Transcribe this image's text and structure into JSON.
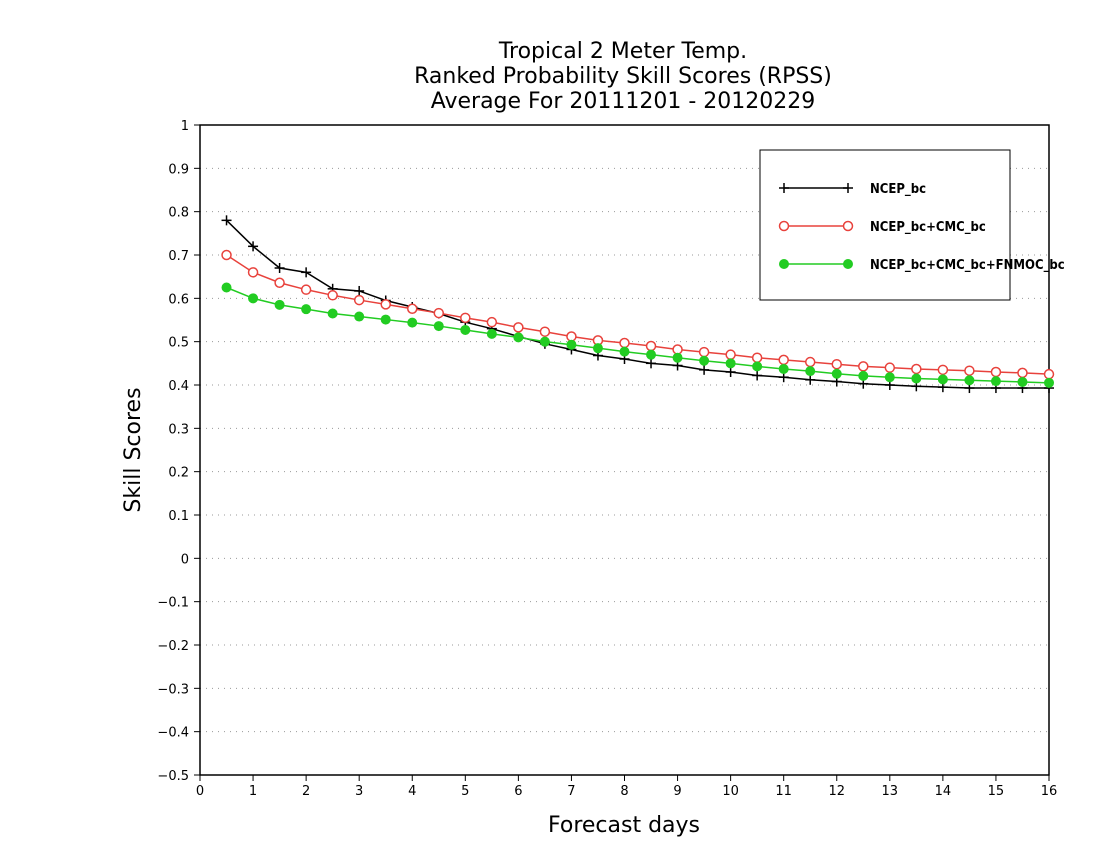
{
  "chart_data": {
    "type": "line",
    "title": [
      "Tropical 2 Meter Temp.",
      "Ranked Probability Skill Scores (RPSS)",
      "Average For 20111201 - 20120229"
    ],
    "xlabel": "Forecast days",
    "ylabel": "Skill Scores",
    "xlim": [
      0,
      16
    ],
    "ylim": [
      -0.5,
      1
    ],
    "x_ticks": [
      "0",
      "1",
      "2",
      "3",
      "4",
      "5",
      "6",
      "7",
      "8",
      "9",
      "10",
      "11",
      "12",
      "13",
      "14",
      "15",
      "16"
    ],
    "y_ticks": [
      "−0.5",
      "−0.4",
      "−0.3",
      "−0.2",
      "−0.1",
      "0",
      "0.1",
      "0.2",
      "0.3",
      "0.4",
      "0.5",
      "0.6",
      "0.7",
      "0.8",
      "0.9",
      "1"
    ],
    "grid": "horizontal dotted",
    "legend_position": "top-right",
    "x": [
      0.5,
      1,
      1.5,
      2,
      2.5,
      3,
      3.5,
      4,
      4.5,
      5,
      5.5,
      6,
      6.5,
      7,
      7.5,
      8,
      8.5,
      9,
      9.5,
      10,
      10.5,
      11,
      11.5,
      12,
      12.5,
      13,
      13.5,
      14,
      14.5,
      15,
      15.5,
      16
    ],
    "series": [
      {
        "name": "NCEP_bc",
        "color": "#000000",
        "marker": "plus",
        "values": [
          0.78,
          0.72,
          0.67,
          0.66,
          0.622,
          0.617,
          0.595,
          0.58,
          0.565,
          0.545,
          0.53,
          0.512,
          0.495,
          0.482,
          0.468,
          0.46,
          0.45,
          0.445,
          0.435,
          0.43,
          0.422,
          0.418,
          0.412,
          0.408,
          0.403,
          0.4,
          0.397,
          0.395,
          0.393,
          0.393,
          0.393,
          0.393
        ]
      },
      {
        "name": "NCEP_bc+CMC_bc",
        "color": "#e8423c",
        "marker": "open-circle",
        "values": [
          0.7,
          0.66,
          0.636,
          0.62,
          0.607,
          0.596,
          0.586,
          0.576,
          0.566,
          0.555,
          0.545,
          0.533,
          0.523,
          0.512,
          0.503,
          0.497,
          0.49,
          0.482,
          0.476,
          0.47,
          0.463,
          0.458,
          0.453,
          0.448,
          0.443,
          0.44,
          0.437,
          0.435,
          0.433,
          0.43,
          0.428,
          0.425
        ]
      },
      {
        "name": "NCEP_bc+CMC_bc+FNMOC_bc",
        "color": "#22cc22",
        "marker": "filled-circle",
        "values": [
          0.625,
          0.6,
          0.585,
          0.575,
          0.565,
          0.558,
          0.551,
          0.544,
          0.536,
          0.527,
          0.518,
          0.51,
          0.5,
          0.493,
          0.485,
          0.477,
          0.47,
          0.463,
          0.456,
          0.45,
          0.443,
          0.437,
          0.432,
          0.426,
          0.421,
          0.418,
          0.415,
          0.413,
          0.411,
          0.409,
          0.407,
          0.405
        ]
      }
    ]
  }
}
